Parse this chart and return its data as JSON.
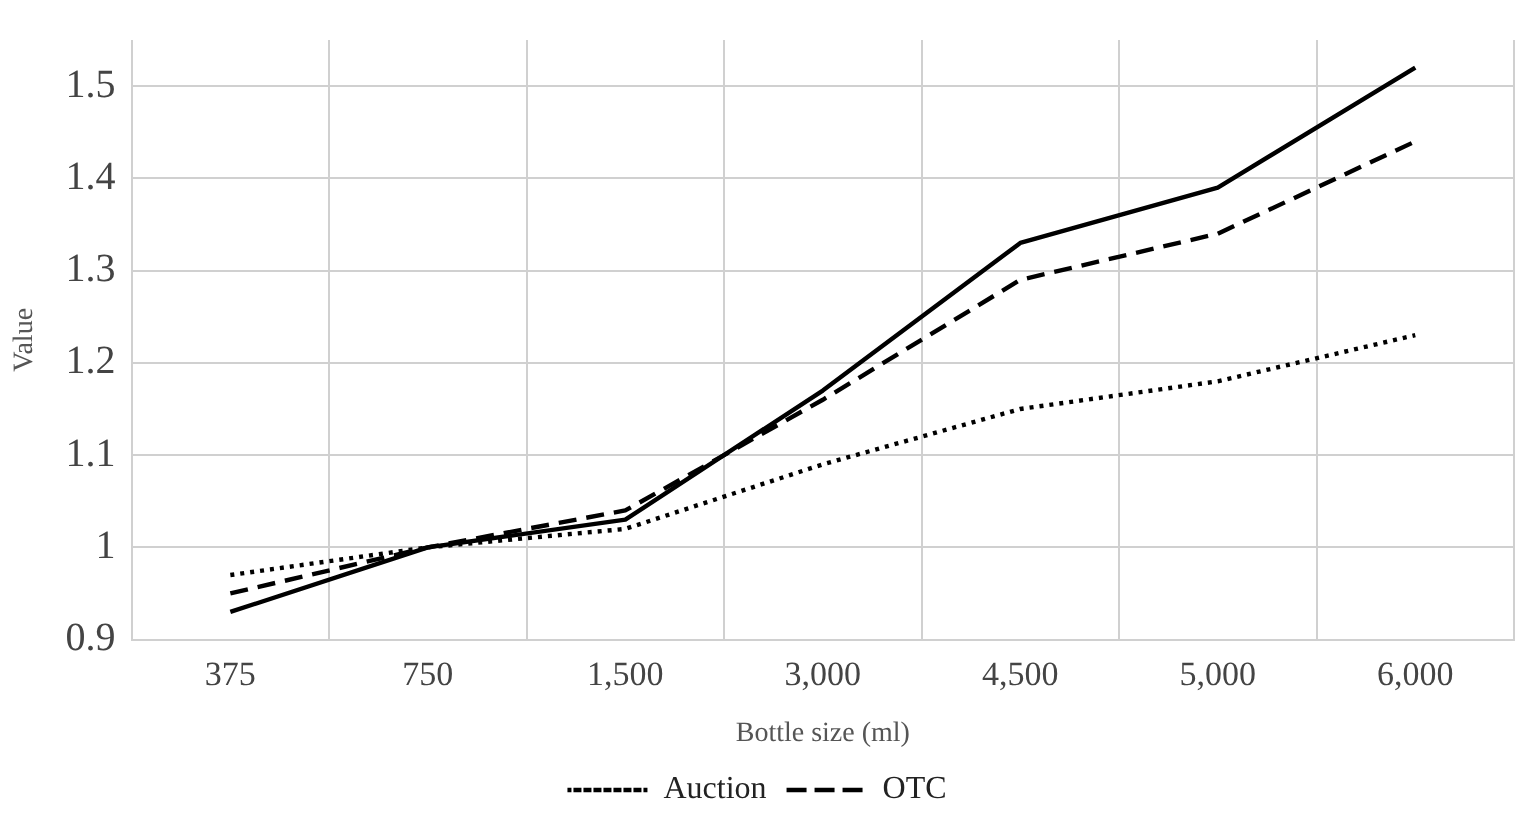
{
  "chart_data": {
    "type": "line",
    "xlabel": "Bottle size (ml)",
    "ylabel": "Value",
    "categories": [
      "375",
      "750",
      "1,500",
      "3,000",
      "4,500",
      "5,000",
      "6,000"
    ],
    "series": [
      {
        "color": "#000000",
        "line_style": "solid",
        "values": [
          0.93,
          1.0,
          1.03,
          1.17,
          1.33,
          1.39,
          1.52
        ]
      },
      {
        "name": "Auction",
        "color": "#000000",
        "line_style": "dotted",
        "values": [
          0.97,
          1.0,
          1.02,
          1.09,
          1.15,
          1.18,
          1.23
        ]
      },
      {
        "name": "OTC",
        "color": "#000000",
        "line_style": "dashed",
        "values": [
          0.95,
          1.0,
          1.04,
          1.16,
          1.29,
          1.34,
          1.44
        ]
      }
    ],
    "ylim": [
      0.9,
      1.55
    ],
    "yticks": [
      0.9,
      {
        "value": 1,
        "label": "1"
      },
      1.1,
      1.2,
      1.3,
      1.4,
      1.5
    ],
    "grid": true,
    "legend": "bottom",
    "marker": "none"
  }
}
